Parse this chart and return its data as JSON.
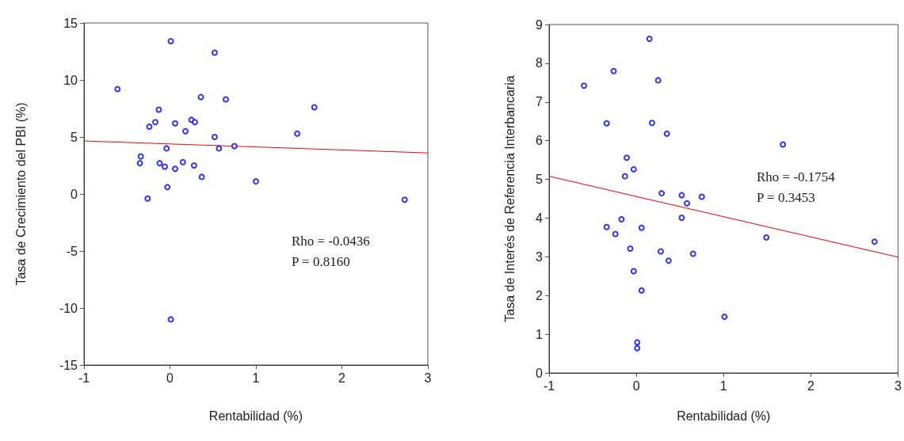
{
  "chart_data": [
    {
      "type": "scatter",
      "xlabel": "Rentabilidad (%)",
      "ylabel": "Tasa de Crecimiento del PBI (%)",
      "xlim": [
        -1,
        3
      ],
      "xticks": [
        -1,
        0,
        1,
        2,
        3
      ],
      "ylim": [
        -15,
        15
      ],
      "yticks": [
        -15,
        -10,
        -5,
        0,
        5,
        10,
        15
      ],
      "marker": "circle",
      "annotations": [
        "Rho = -0.0436",
        "P = 0.8160"
      ],
      "series": [
        {
          "color": "#0000ff",
          "x": [
            -0.61,
            0.01,
            0.52,
            -0.24,
            -0.17,
            -0.13,
            0.06,
            0.25,
            0.29,
            0.36,
            0.65,
            0.18,
            0.52,
            0.57,
            0.75,
            -0.04,
            -0.34,
            -0.35,
            -0.12,
            -0.06,
            0.06,
            0.15,
            0.28,
            0.37,
            1.0,
            -0.03,
            -0.26,
            1.48,
            1.68,
            2.73,
            0.01
          ],
          "values": [
            9.2,
            13.4,
            12.4,
            5.9,
            6.3,
            7.4,
            6.2,
            6.5,
            6.3,
            8.5,
            8.3,
            5.5,
            5.0,
            4.0,
            4.2,
            4.0,
            3.3,
            2.7,
            2.7,
            2.4,
            2.2,
            2.8,
            2.5,
            1.5,
            1.1,
            0.6,
            -0.4,
            5.3,
            7.6,
            -0.5,
            -11.0
          ]
        },
        {
          "type": "line",
          "color": "#ff0000",
          "marker": "none",
          "x": [
            -1,
            3
          ],
          "values": [
            4.65,
            3.6
          ]
        }
      ]
    },
    {
      "type": "scatter",
      "xlabel": "Rentabilidad (%)",
      "ylabel": "Tasa de Interés de Referencia Interbancaria",
      "xlim": [
        -1,
        3
      ],
      "xticks": [
        -1,
        0,
        1,
        2,
        3
      ],
      "ylim": [
        0,
        9
      ],
      "yticks": [
        0,
        1,
        2,
        3,
        4,
        5,
        6,
        7,
        8,
        9
      ],
      "marker": "circle",
      "annotations": [
        "Rho = -0.1754",
        "P = 0.3453"
      ],
      "series": [
        {
          "color": "#0000ff",
          "x": [
            -0.6,
            -0.26,
            0.15,
            0.25,
            -0.34,
            0.18,
            0.35,
            1.68,
            -0.11,
            -0.03,
            -0.13,
            0.29,
            0.52,
            0.58,
            0.75,
            0.52,
            -0.17,
            -0.34,
            0.06,
            -0.24,
            1.49,
            2.73,
            -0.07,
            0.28,
            0.65,
            0.37,
            -0.03,
            0.06,
            1.01,
            0.01,
            0.01
          ],
          "values": [
            7.42,
            7.8,
            8.63,
            7.56,
            6.45,
            6.46,
            6.18,
            5.9,
            5.56,
            5.26,
            5.08,
            4.64,
            4.59,
            4.38,
            4.55,
            4.01,
            3.97,
            3.77,
            3.75,
            3.59,
            3.5,
            3.39,
            3.21,
            3.14,
            3.08,
            2.9,
            2.63,
            2.13,
            1.45,
            0.79,
            0.64
          ]
        },
        {
          "type": "line",
          "color": "#ff0000",
          "marker": "none",
          "x": [
            -1,
            3
          ],
          "values": [
            5.08,
            2.99
          ]
        }
      ]
    }
  ]
}
